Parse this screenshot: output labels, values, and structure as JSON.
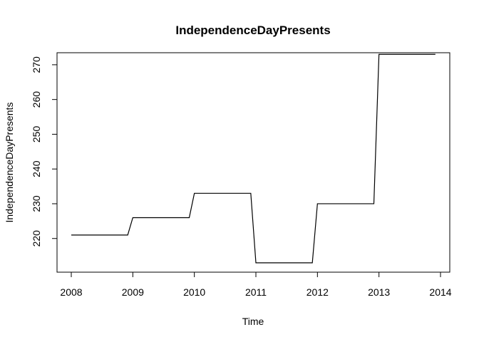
{
  "chart_data": {
    "type": "line",
    "title": "IndependenceDayPresents",
    "xlabel": "Time",
    "ylabel": "IndependenceDayPresents",
    "xlim": [
      2008,
      2014
    ],
    "ylim": [
      210,
      275
    ],
    "x_ticks": [
      2008,
      2009,
      2010,
      2011,
      2012,
      2013,
      2014
    ],
    "y_ticks": [
      220,
      230,
      240,
      250,
      260,
      270
    ],
    "grid": false,
    "legend": "none",
    "line_color": "#000000",
    "series": [
      {
        "x": [
          2008.0,
          2008.917,
          2009.0,
          2009.917,
          2010.0,
          2010.917,
          2011.0,
          2011.917,
          2012.0,
          2012.917,
          2013.0,
          2013.917
        ],
        "y": [
          221,
          221,
          226,
          226,
          233,
          233,
          213,
          213,
          230,
          230,
          273,
          273
        ]
      }
    ]
  }
}
